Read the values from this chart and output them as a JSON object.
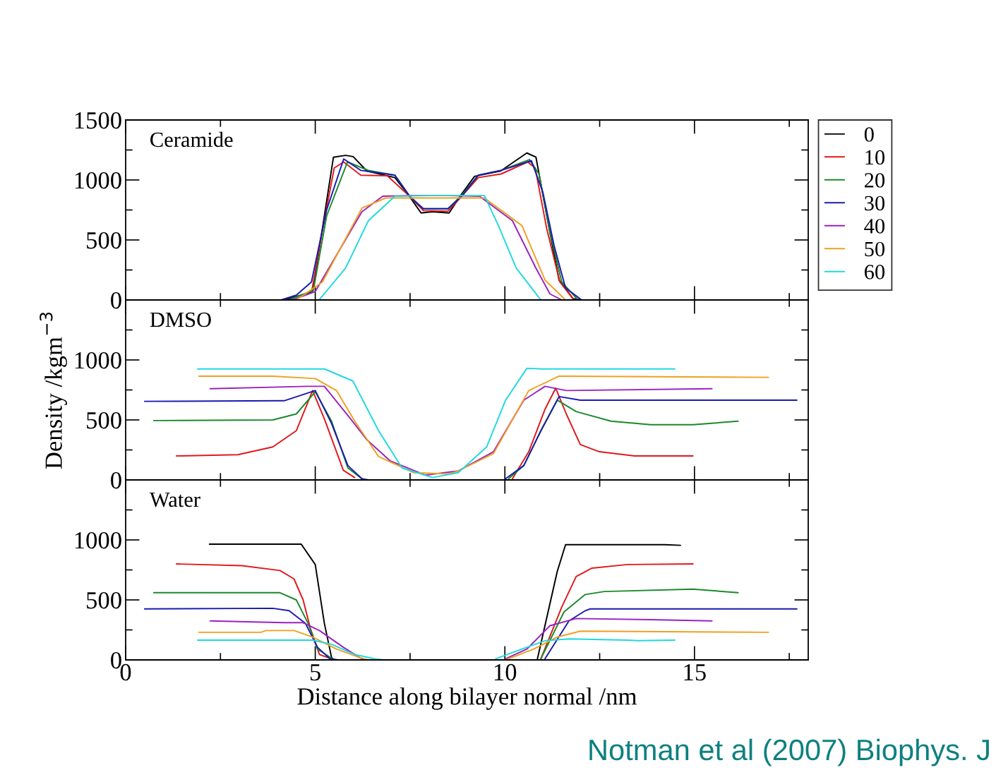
{
  "chart_data": [
    {
      "type": "line",
      "title": "Ceramide",
      "xlim": [
        0,
        18
      ],
      "xticks": [
        0,
        5,
        10,
        15
      ],
      "ylim": [
        0,
        1500
      ],
      "yticks": [
        0,
        500,
        1000,
        1500
      ],
      "tick_labels": "y",
      "legend": "right",
      "grid": false,
      "marker": "none",
      "line_style": "solid",
      "series": [
        {
          "name": "0",
          "color": "#000000",
          "x": [
            4.2,
            4.93,
            5.48,
            5.8,
            6.0,
            6.36,
            7.1,
            7.47,
            7.79,
            8.09,
            8.53,
            8.83,
            9.2,
            9.89,
            10.58,
            10.82,
            11.13,
            11.43,
            11.8,
            12.0
          ],
          "values": [
            0,
            70,
            1190,
            1205,
            1195,
            1075,
            1020,
            870,
            725,
            735,
            725,
            870,
            1030,
            1075,
            1225,
            1190,
            660,
            165,
            10,
            0
          ]
        },
        {
          "name": "10",
          "color": "#e0181c",
          "x": [
            4.9,
            5.2,
            5.5,
            5.75,
            6.2,
            6.9,
            7.5,
            7.85,
            8.5,
            8.85,
            9.3,
            9.9,
            10.6,
            10.8,
            11.1,
            11.45,
            11.8
          ],
          "values": [
            60,
            600,
            1100,
            1150,
            1040,
            1035,
            860,
            745,
            740,
            860,
            1020,
            1050,
            1150,
            1100,
            600,
            150,
            10
          ]
        },
        {
          "name": "20",
          "color": "#1a8a2a",
          "x": [
            4.3,
            4.95,
            5.3,
            5.85,
            6.4,
            7.1,
            7.5,
            7.85,
            8.5,
            8.85,
            9.3,
            9.9,
            10.65,
            10.9,
            11.2,
            11.5,
            11.9
          ],
          "values": [
            0,
            80,
            700,
            1150,
            1080,
            1040,
            860,
            760,
            760,
            870,
            1040,
            1080,
            1170,
            1050,
            550,
            150,
            10
          ]
        },
        {
          "name": "30",
          "color": "#1a1ab0",
          "x": [
            4.1,
            4.5,
            4.9,
            5.3,
            5.75,
            6.2,
            7.1,
            7.5,
            7.85,
            8.5,
            8.85,
            9.3,
            9.9,
            10.7,
            11.0,
            11.3,
            11.6,
            12.0
          ],
          "values": [
            0,
            40,
            150,
            750,
            1175,
            1080,
            1040,
            860,
            760,
            760,
            860,
            1040,
            1080,
            1160,
            900,
            450,
            100,
            5
          ]
        },
        {
          "name": "40",
          "color": "#9a22c0",
          "x": [
            4.4,
            5.0,
            6.23,
            6.78,
            7.5,
            8.5,
            9.33,
            10.2,
            10.82,
            11.19,
            11.5
          ],
          "values": [
            0,
            70,
            735,
            865,
            870,
            870,
            865,
            660,
            265,
            50,
            0
          ]
        },
        {
          "name": "50",
          "color": "#f0a020",
          "x": [
            4.5,
            5.19,
            6.23,
            6.86,
            7.5,
            8.5,
            9.46,
            10.45,
            11.06,
            11.6
          ],
          "values": [
            0,
            150,
            765,
            850,
            850,
            850,
            850,
            620,
            165,
            0
          ]
        },
        {
          "name": "60",
          "color": "#20d8e0",
          "x": [
            5.1,
            5.8,
            6.4,
            7.1,
            8.0,
            9.46,
            9.83,
            10.3,
            10.95
          ],
          "values": [
            0,
            265,
            660,
            865,
            870,
            870,
            620,
            265,
            0
          ]
        }
      ]
    },
    {
      "type": "line",
      "title": "DMSO",
      "ylabel": "Density /kgm$^{−3}$",
      "xlim": [
        0,
        18
      ],
      "xticks": [
        0,
        5,
        10,
        15
      ],
      "ylim": [
        0,
        1500
      ],
      "yticks": [
        0,
        500,
        1000
      ],
      "tick_labels": "y",
      "grid": false,
      "marker": "none",
      "line_style": "solid",
      "series": [
        {
          "color": "#e0181c",
          "x": [
            1.34,
            2.96,
            3.88,
            4.5,
            4.93,
            5.24,
            5.74,
            6.04,
            8.0,
            10.2,
            10.63,
            11.06,
            11.34,
            11.62,
            11.99,
            12.49,
            13.42,
            14.96
          ],
          "values": [
            200,
            210,
            275,
            410,
            745,
            510,
            80,
            20,
            null,
            10,
            235,
            590,
            765,
            550,
            295,
            235,
            200,
            200
          ]
        },
        {
          "color": "#1a8a2a",
          "x": [
            0.74,
            3.88,
            4.5,
            5.0,
            5.43,
            5.86,
            6.23,
            8.0,
            10.1,
            10.5,
            10.95,
            11.38,
            11.88,
            12.8,
            13.85,
            14.96,
            16.15
          ],
          "values": [
            495,
            500,
            550,
            735,
            490,
            100,
            10,
            null,
            10,
            120,
            410,
            665,
            570,
            490,
            460,
            460,
            490
          ]
        },
        {
          "color": "#1a1ab0",
          "x": [
            0.5,
            4.18,
            5.0,
            5.43,
            5.86,
            6.23,
            6.4,
            8.0,
            10.02,
            10.5,
            10.95,
            11.43,
            11.99,
            17.7
          ],
          "values": [
            655,
            660,
            745,
            470,
            120,
            10,
            0,
            null,
            10,
            120,
            410,
            695,
            665,
            665
          ]
        },
        {
          "color": "#9a22c0",
          "x": [
            2.23,
            4.81,
            5.24,
            5.93,
            6.36,
            6.97,
            7.9,
            8.77,
            9.7,
            10.5,
            11.06,
            11.62,
            15.46
          ],
          "values": [
            760,
            780,
            780,
            510,
            335,
            160,
            40,
            75,
            235,
            665,
            780,
            745,
            760
          ]
        },
        {
          "color": "#f0a020",
          "x": [
            1.93,
            3.88,
            5.0,
            5.56,
            6.04,
            6.67,
            7.6,
            8.53,
            8.77,
            9.7,
            10.63,
            11.43,
            16.95
          ],
          "values": [
            865,
            865,
            845,
            745,
            490,
            195,
            60,
            50,
            75,
            220,
            745,
            865,
            855
          ]
        },
        {
          "color": "#20d8e0",
          "x": [
            1.9,
            5.24,
            5.99,
            6.67,
            7.29,
            8.09,
            8.77,
            9.52,
            10.02,
            10.58,
            10.99,
            14.48
          ],
          "values": [
            925,
            925,
            825,
            410,
            100,
            20,
            60,
            275,
            665,
            930,
            925,
            925
          ]
        }
      ]
    },
    {
      "type": "line",
      "title": "Water",
      "xlabel": "Distance along bilayer normal /nm",
      "xlim": [
        0,
        18
      ],
      "xticks": [
        0,
        5,
        10,
        15
      ],
      "ylim": [
        0,
        1500
      ],
      "yticks": [
        0,
        500,
        1000
      ],
      "grid": false,
      "marker": "none",
      "line_style": "solid",
      "annotations": [
        "Notman et al (2007) Biophys. J"
      ],
      "series": [
        {
          "color": "#000000",
          "x": [
            2.21,
            4.63,
            5.0,
            5.24,
            5.43,
            5.5,
            8.0,
            10.86,
            11.38,
            11.6,
            14.22,
            14.63
          ],
          "values": [
            965,
            965,
            795,
            305,
            20,
            0,
            null,
            10,
            735,
            960,
            960,
            955
          ]
        },
        {
          "color": "#e0181c",
          "x": [
            1.34,
            3.07,
            4.07,
            4.44,
            4.68,
            4.87,
            5.11,
            5.5,
            8.0,
            10.95,
            11.5,
            11.88,
            12.3,
            13.23,
            14.96
          ],
          "values": [
            800,
            785,
            745,
            675,
            500,
            265,
            45,
            0,
            null,
            10,
            440,
            695,
            765,
            795,
            800
          ]
        },
        {
          "color": "#1a8a2a",
          "x": [
            0.74,
            4.07,
            4.5,
            4.81,
            5.06,
            5.5,
            8.0,
            10.95,
            11.56,
            12.12,
            12.62,
            14.96,
            16.15
          ],
          "values": [
            560,
            560,
            500,
            305,
            90,
            0,
            null,
            10,
            400,
            545,
            570,
            590,
            560
          ]
        },
        {
          "color": "#1a1ab0",
          "x": [
            0.5,
            3.88,
            4.31,
            4.74,
            5.06,
            5.38,
            5.6,
            8.0,
            11.06,
            11.69,
            12.12,
            12.25,
            17.7
          ],
          "values": [
            425,
            430,
            410,
            305,
            105,
            10,
            0,
            null,
            10,
            325,
            410,
            425,
            425
          ]
        },
        {
          "color": "#9a22c0",
          "x": [
            2.23,
            4.18,
            4.68,
            5.11,
            5.74,
            6.17,
            6.3,
            8.0,
            10.02,
            10.58,
            11.19,
            11.88,
            13.85,
            15.46
          ],
          "values": [
            325,
            310,
            310,
            245,
            105,
            20,
            0,
            null,
            10,
            90,
            285,
            345,
            335,
            325
          ]
        },
        {
          "color": "#f0a020",
          "x": [
            1.93,
            3.57,
            3.7,
            4.44,
            4.93,
            5.56,
            6.17,
            6.4,
            8.0,
            10.02,
            10.76,
            11.38,
            11.99,
            16.95
          ],
          "values": [
            230,
            230,
            245,
            245,
            190,
            90,
            20,
            0,
            null,
            0,
            90,
            190,
            240,
            230
          ]
        },
        {
          "color": "#20d8e0",
          "x": [
            1.9,
            4.93,
            5.43,
            6.04,
            6.54,
            6.8,
            8.0,
            9.76,
            10.45,
            11.06,
            11.69,
            13.23,
            13.5,
            14.48
          ],
          "values": [
            165,
            165,
            130,
            45,
            10,
            0,
            null,
            10,
            90,
            160,
            175,
            165,
            160,
            165
          ]
        }
      ]
    }
  ]
}
